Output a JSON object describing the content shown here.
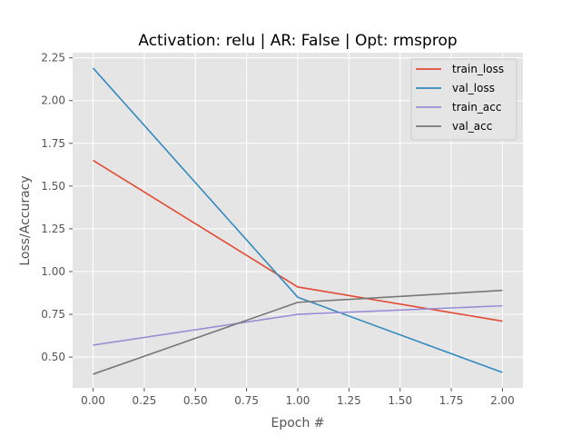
{
  "chart_data": {
    "type": "line",
    "title": "Activation: relu | AR: False | Opt: rmsprop",
    "xlabel": "Epoch #",
    "ylabel": "Loss/Accuracy",
    "x": [
      0,
      1,
      2
    ],
    "xlim": [
      -0.1,
      2.1
    ],
    "ylim": [
      0.32,
      2.28
    ],
    "xticks": [
      0.0,
      0.25,
      0.5,
      0.75,
      1.0,
      1.25,
      1.5,
      1.75,
      2.0
    ],
    "xtick_labels": [
      "0.00",
      "0.25",
      "0.50",
      "0.75",
      "1.00",
      "1.25",
      "1.50",
      "1.75",
      "2.00"
    ],
    "yticks": [
      0.5,
      0.75,
      1.0,
      1.25,
      1.5,
      1.75,
      2.0,
      2.25
    ],
    "ytick_labels": [
      "0.50",
      "0.75",
      "1.00",
      "1.25",
      "1.50",
      "1.75",
      "2.00",
      "2.25"
    ],
    "grid": true,
    "legend_position": "top-right",
    "series": [
      {
        "name": "train_loss",
        "color": "#E24A33",
        "values": [
          1.65,
          0.91,
          0.71
        ]
      },
      {
        "name": "val_loss",
        "color": "#348ABD",
        "values": [
          2.19,
          0.85,
          0.41
        ]
      },
      {
        "name": "train_acc",
        "color": "#988ED5",
        "values": [
          0.57,
          0.75,
          0.8
        ]
      },
      {
        "name": "val_acc",
        "color": "#777777",
        "values": [
          0.4,
          0.82,
          0.89
        ]
      }
    ]
  }
}
